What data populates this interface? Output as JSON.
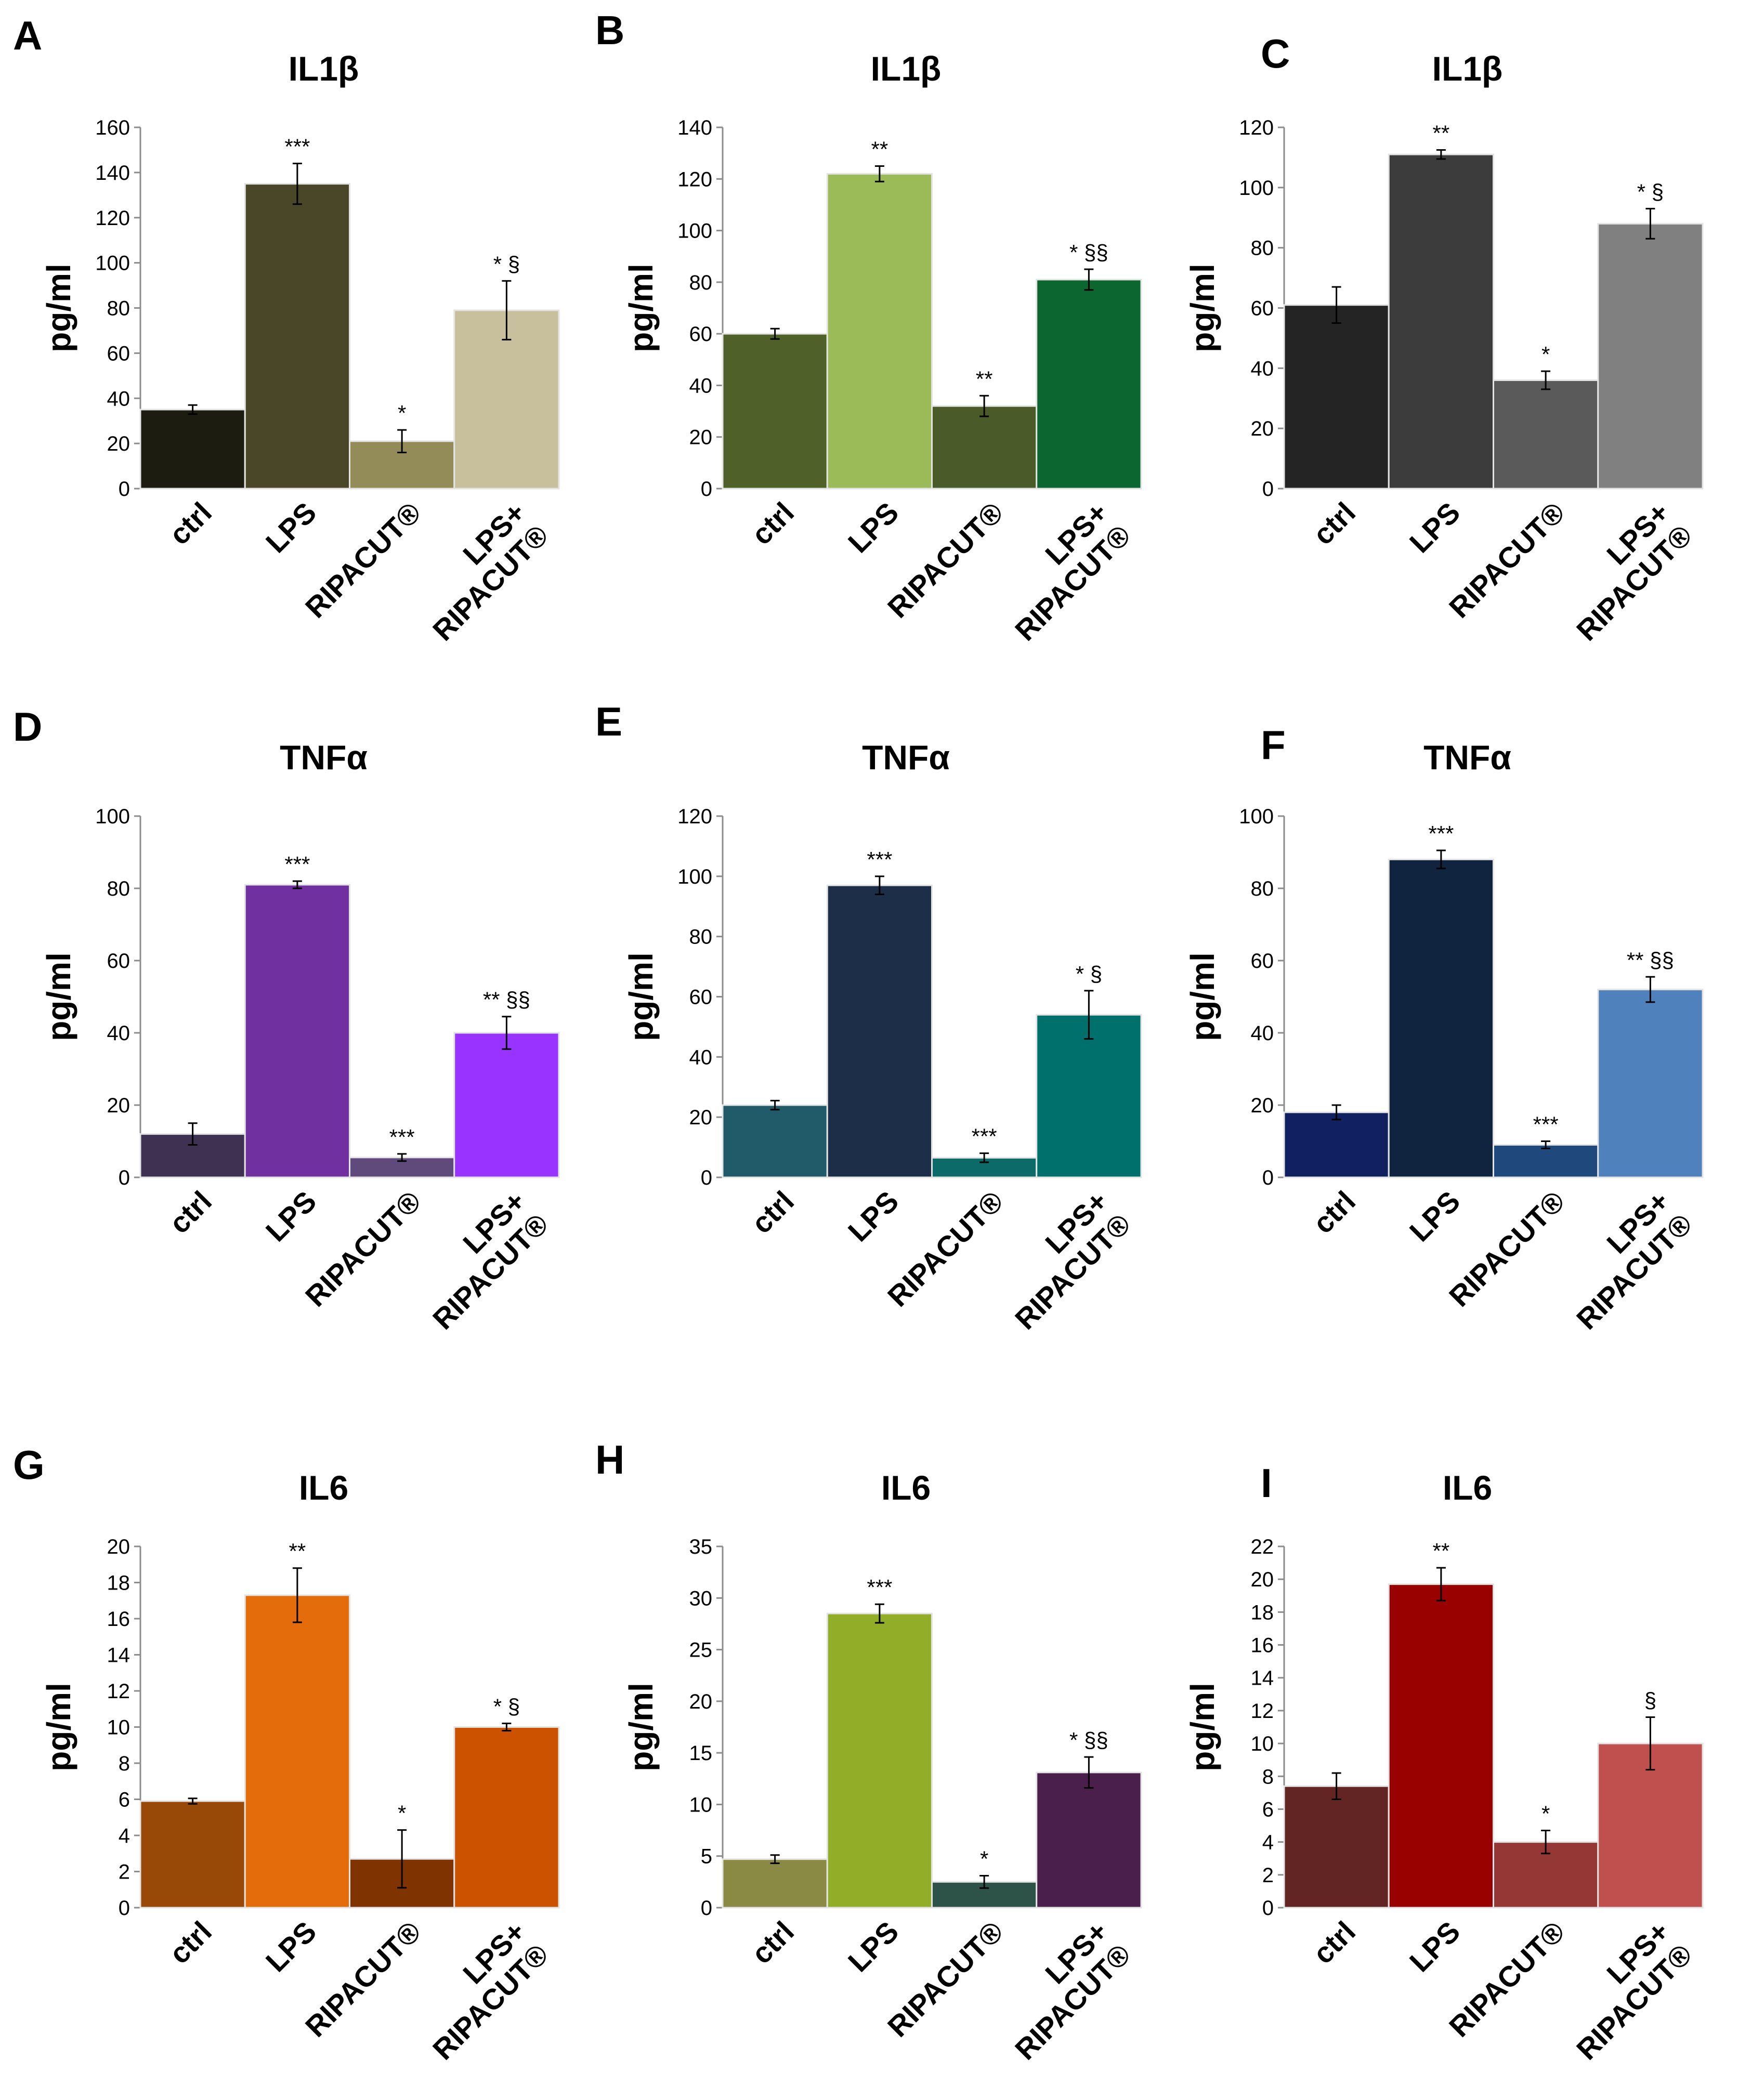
{
  "chart_data": [
    {
      "panel": "A",
      "type": "bar",
      "title": "IL1β",
      "ylabel": "pg/ml",
      "ylim": [
        0,
        160
      ],
      "yticks": [
        0,
        20,
        40,
        60,
        80,
        100,
        120,
        140,
        160
      ],
      "categories": [
        "ctrl",
        "LPS",
        "RIPACUT®",
        "LPS+ RIPACUT®"
      ],
      "category_lines": [
        [
          "ctrl"
        ],
        [
          "LPS"
        ],
        [
          "RIPACUT®"
        ],
        [
          "LPS+",
          "RIPACUT®"
        ]
      ],
      "values": [
        35,
        135,
        21,
        79
      ],
      "errors": [
        2,
        9,
        5,
        13
      ],
      "significance": [
        "",
        "***",
        "*",
        "* §"
      ],
      "colors": [
        "#1c1c10",
        "#4a4628",
        "#948c58",
        "#c8c09c"
      ]
    },
    {
      "panel": "B",
      "type": "bar",
      "title": "IL1β",
      "ylabel": "pg/ml",
      "ylim": [
        0,
        140
      ],
      "yticks": [
        0,
        20,
        40,
        60,
        80,
        100,
        120,
        140
      ],
      "categories": [
        "ctrl",
        "LPS",
        "RIPACUT®",
        "LPS+ RIPACUT®"
      ],
      "category_lines": [
        [
          "ctrl"
        ],
        [
          "LPS"
        ],
        [
          "RIPACUT®"
        ],
        [
          "LPS+",
          "RIPACUT®"
        ]
      ],
      "values": [
        60,
        122,
        32,
        81
      ],
      "errors": [
        2,
        3,
        4,
        4
      ],
      "significance": [
        "",
        "**",
        "**",
        "* §§"
      ],
      "colors": [
        "#4f6128",
        "#9bbb59",
        "#4a5a28",
        "#0c6630"
      ]
    },
    {
      "panel": "C",
      "type": "bar",
      "title": "IL1β",
      "ylabel": "pg/ml",
      "ylim": [
        0,
        120
      ],
      "yticks": [
        0,
        20,
        40,
        60,
        80,
        100,
        120
      ],
      "categories": [
        "ctrl",
        "LPS",
        "RIPACUT®",
        "LPS+ RIPACUT®"
      ],
      "category_lines": [
        [
          "ctrl"
        ],
        [
          "LPS"
        ],
        [
          "RIPACUT®"
        ],
        [
          "LPS+",
          "RIPACUT®"
        ]
      ],
      "values": [
        61,
        111,
        36,
        88
      ],
      "errors": [
        6,
        1.5,
        3,
        5
      ],
      "significance": [
        "",
        "**",
        "*",
        "* §"
      ],
      "colors": [
        "#242424",
        "#3c3c3c",
        "#5a5a5a",
        "#808080"
      ]
    },
    {
      "panel": "D",
      "type": "bar",
      "title": "TNFα",
      "ylabel": "pg/ml",
      "ylim": [
        0,
        100
      ],
      "yticks": [
        0,
        20,
        40,
        60,
        80,
        100
      ],
      "categories": [
        "ctrl",
        "LPS",
        "RIPACUT®",
        "LPS+ RIPACUT®"
      ],
      "category_lines": [
        [
          "ctrl"
        ],
        [
          "LPS"
        ],
        [
          "RIPACUT®"
        ],
        [
          "LPS+",
          "RIPACUT®"
        ]
      ],
      "values": [
        12,
        81,
        5.5,
        40
      ],
      "errors": [
        3,
        1,
        1,
        4.5
      ],
      "significance": [
        "",
        "***",
        "***",
        "** §§"
      ],
      "colors": [
        "#3f3151",
        "#7030a0",
        "#604a7b",
        "#9933ff"
      ]
    },
    {
      "panel": "E",
      "type": "bar",
      "title": "TNFα",
      "ylabel": "pg/ml",
      "ylim": [
        0,
        120
      ],
      "yticks": [
        0,
        20,
        40,
        60,
        80,
        100,
        120
      ],
      "categories": [
        "ctrl",
        "LPS",
        "RIPACUT®",
        "LPS+ RIPACUT®"
      ],
      "category_lines": [
        [
          "ctrl"
        ],
        [
          "LPS"
        ],
        [
          "RIPACUT®"
        ],
        [
          "LPS+",
          "RIPACUT®"
        ]
      ],
      "values": [
        24,
        97,
        6.5,
        54
      ],
      "errors": [
        1.5,
        3,
        1.5,
        8
      ],
      "significance": [
        "",
        "***",
        "***",
        "* §"
      ],
      "colors": [
        "#215a68",
        "#1c2e48",
        "#0c6a68",
        "#00706c"
      ]
    },
    {
      "panel": "F",
      "type": "bar",
      "title": "TNFα",
      "ylabel": "pg/ml",
      "ylim": [
        0,
        100
      ],
      "yticks": [
        0,
        20,
        40,
        60,
        80,
        100
      ],
      "categories": [
        "ctrl",
        "LPS",
        "RIPACUT®",
        "LPS+ RIPACUT®"
      ],
      "category_lines": [
        [
          "ctrl"
        ],
        [
          "LPS"
        ],
        [
          "RIPACUT®"
        ],
        [
          "LPS+",
          "RIPACUT®"
        ]
      ],
      "values": [
        18,
        88,
        9,
        52
      ],
      "errors": [
        2,
        2.5,
        1,
        3.5
      ],
      "significance": [
        "",
        "***",
        "***",
        "** §§"
      ],
      "colors": [
        "#102060",
        "#10233f",
        "#1f497d",
        "#4f81bd"
      ]
    },
    {
      "panel": "G",
      "type": "bar",
      "title": "IL6",
      "ylabel": "pg/ml",
      "ylim": [
        0,
        20
      ],
      "yticks": [
        0,
        2,
        4,
        6,
        8,
        10,
        12,
        14,
        16,
        18,
        20
      ],
      "categories": [
        "ctrl",
        "LPS",
        "RIPACUT®",
        "LPS+ RIPACUT®"
      ],
      "category_lines": [
        [
          "ctrl"
        ],
        [
          "LPS"
        ],
        [
          "RIPACUT®"
        ],
        [
          "LPS+",
          "RIPACUT®"
        ]
      ],
      "values": [
        5.9,
        17.3,
        2.7,
        10
      ],
      "errors": [
        0.15,
        1.5,
        1.6,
        0.2
      ],
      "significance": [
        "",
        "**",
        "*",
        "* §"
      ],
      "colors": [
        "#984807",
        "#e46c0a",
        "#7f3300",
        "#cc5200"
      ]
    },
    {
      "panel": "H",
      "type": "bar",
      "title": "IL6",
      "ylabel": "pg/ml",
      "ylim": [
        0,
        35
      ],
      "yticks": [
        0,
        5,
        10,
        15,
        20,
        25,
        30,
        35
      ],
      "categories": [
        "ctrl",
        "LPS",
        "RIPACUT®",
        "LPS+ RIPACUT®"
      ],
      "category_lines": [
        [
          "ctrl"
        ],
        [
          "LPS"
        ],
        [
          "RIPACUT®"
        ],
        [
          "LPS+",
          "RIPACUT®"
        ]
      ],
      "values": [
        4.7,
        28.5,
        2.5,
        13.1
      ],
      "errors": [
        0.4,
        0.9,
        0.6,
        1.5
      ],
      "significance": [
        "",
        "***",
        "*",
        "* §§"
      ],
      "colors": [
        "#8a8a44",
        "#92ae28",
        "#2d5248",
        "#4a1f4c"
      ]
    },
    {
      "panel": "I",
      "type": "bar",
      "title": "IL6",
      "ylabel": "pg/ml",
      "ylim": [
        0,
        22
      ],
      "yticks": [
        0,
        2,
        4,
        6,
        8,
        10,
        12,
        14,
        16,
        18,
        20,
        22
      ],
      "categories": [
        "ctrl",
        "LPS",
        "RIPACUT®",
        "LPS+ RIPACUT®"
      ],
      "category_lines": [
        [
          "ctrl"
        ],
        [
          "LPS"
        ],
        [
          "RIPACUT®"
        ],
        [
          "LPS+",
          "RIPACUT®"
        ]
      ],
      "values": [
        7.4,
        19.7,
        4,
        10
      ],
      "errors": [
        0.8,
        1,
        0.7,
        1.6
      ],
      "significance": [
        "",
        "**",
        "*",
        "§"
      ],
      "colors": [
        "#632523",
        "#990000",
        "#953735",
        "#c0504d"
      ]
    }
  ]
}
